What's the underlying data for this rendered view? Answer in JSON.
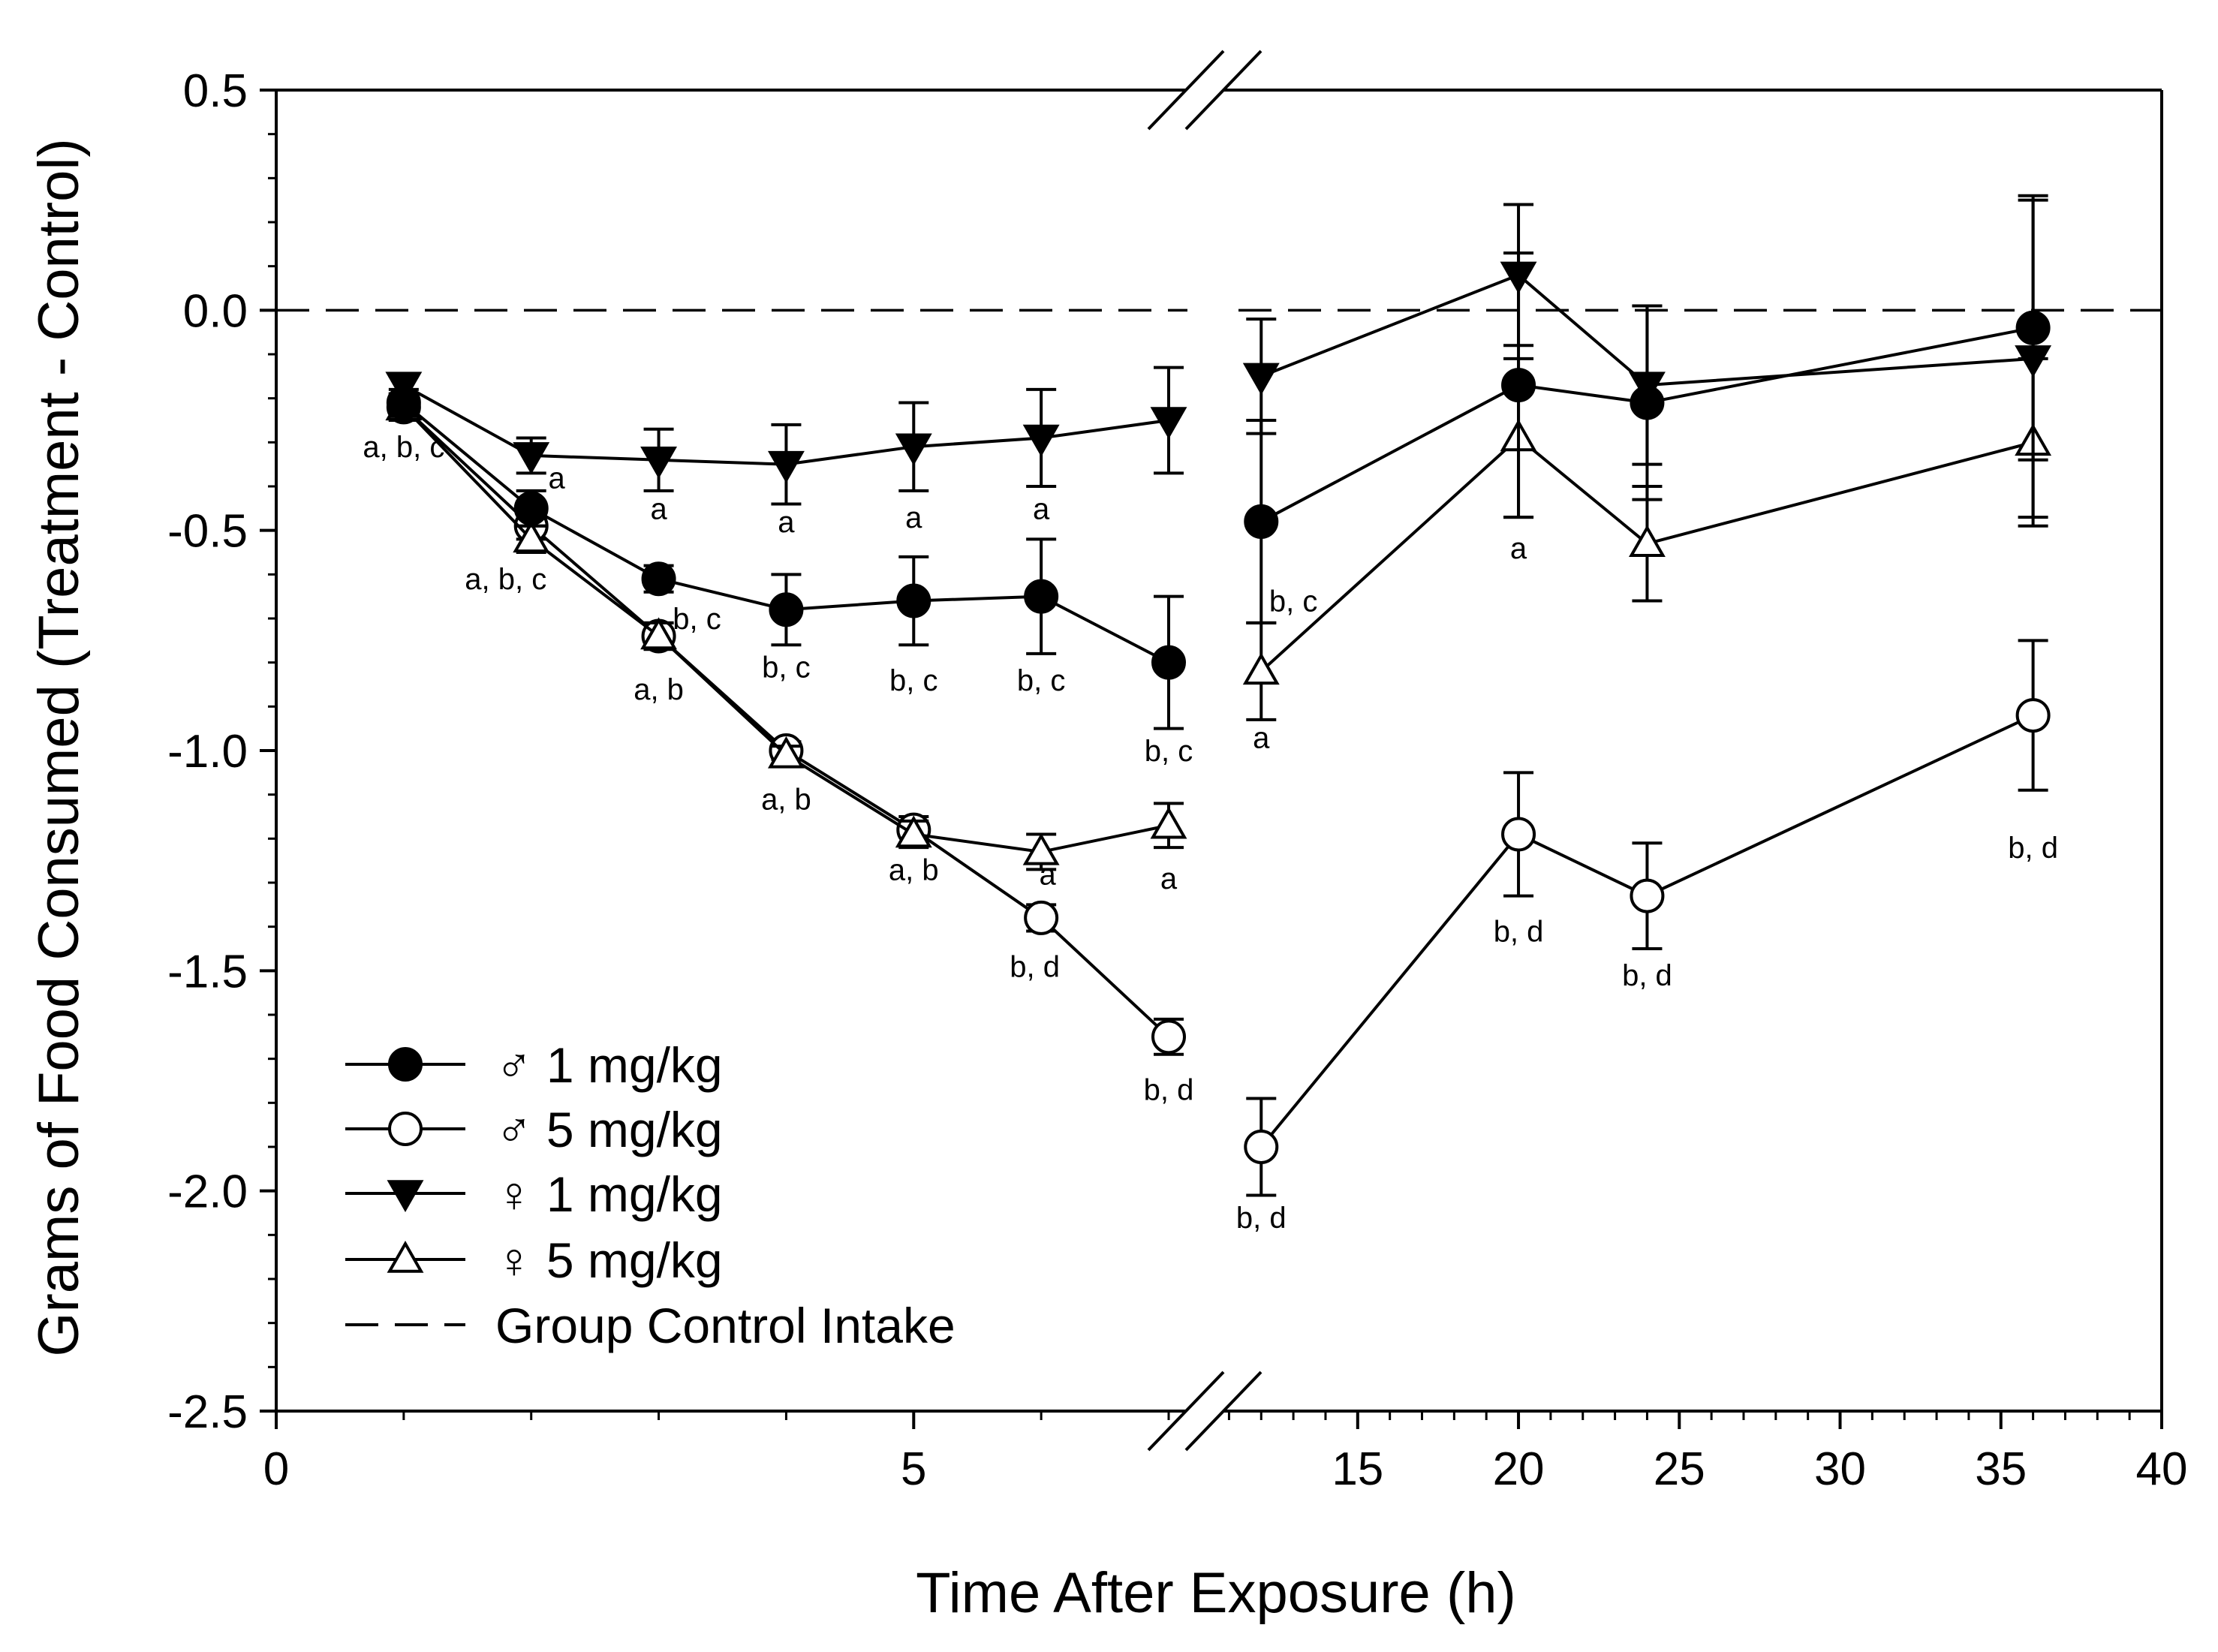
{
  "chart_data": {
    "type": "line",
    "xlabel": "Time After Exposure (h)",
    "ylabel": "Grams of Food Consumed (Treatment - Control)",
    "ylim": [
      -2.5,
      0.5
    ],
    "y_ticks": [
      "0.5",
      "0.0",
      "-0.5",
      "-1.0",
      "-1.5",
      "-2.0",
      "-2.5"
    ],
    "x_axis": {
      "broken": true,
      "segments": [
        {
          "range": [
            0,
            7
          ],
          "ticks": [
            "0",
            "5"
          ]
        },
        {
          "range": [
            10.5,
            40
          ],
          "ticks": [
            "15",
            "20",
            "25",
            "30",
            "35",
            "40"
          ]
        }
      ]
    },
    "series": [
      {
        "name": "♂ 1 mg/kg",
        "marker": "filled-circle",
        "x": [
          1,
          2,
          3,
          4,
          5,
          6,
          7,
          12,
          20,
          24,
          36
        ],
        "y": [
          -0.21,
          -0.45,
          -0.61,
          -0.68,
          -0.66,
          -0.65,
          -0.8,
          -0.48,
          -0.17,
          -0.21,
          -0.04
        ],
        "err": [
          0.03,
          0.04,
          0.03,
          0.08,
          0.1,
          0.13,
          0.15,
          0.23,
          0.3,
          0.22,
          0.3
        ]
      },
      {
        "name": "♂ 5 mg/kg",
        "marker": "open-circle",
        "x": [
          1,
          2,
          3,
          4,
          5,
          6,
          7,
          12,
          20,
          24,
          36
        ],
        "y": [
          -0.22,
          -0.49,
          -0.74,
          -1.0,
          -1.18,
          -1.38,
          -1.65,
          -1.9,
          -1.19,
          -1.33,
          -0.92
        ],
        "err": [
          0.03,
          0.03,
          0.03,
          0.02,
          0.03,
          0.03,
          0.04,
          0.11,
          0.14,
          0.12,
          0.17
        ]
      },
      {
        "name": "♀ 1 mg/kg",
        "marker": "filled-triangle-down",
        "x": [
          1,
          2,
          3,
          4,
          5,
          6,
          7,
          12,
          20,
          24,
          36
        ],
        "y": [
          -0.17,
          -0.33,
          -0.34,
          -0.35,
          -0.31,
          -0.29,
          -0.25,
          -0.15,
          0.08,
          -0.17,
          -0.11
        ],
        "err": [
          0.02,
          0.04,
          0.07,
          0.09,
          0.1,
          0.11,
          0.12,
          0.13,
          0.16,
          0.18,
          0.36
        ]
      },
      {
        "name": "♀ 5 mg/kg",
        "marker": "open-triangle-up",
        "x": [
          1,
          2,
          3,
          4,
          5,
          6,
          7,
          12,
          20,
          24,
          36
        ],
        "y": [
          -0.22,
          -0.52,
          -0.74,
          -1.01,
          -1.19,
          -1.23,
          -1.17,
          -0.82,
          -0.29,
          -0.53,
          -0.3
        ],
        "err": [
          0.03,
          0.03,
          0.03,
          0.02,
          0.03,
          0.04,
          0.05,
          0.11,
          0.18,
          0.13,
          0.19
        ]
      }
    ],
    "reference_line": {
      "name": "Group Control Intake",
      "y": 0.0,
      "style": "dashed"
    },
    "annotations": [
      {
        "text": "a, b, c",
        "x": 1,
        "y": -0.31
      },
      {
        "text": "a",
        "x": 2.2,
        "y": -0.38
      },
      {
        "text": "a, b, c",
        "x": 1.8,
        "y": -0.61
      },
      {
        "text": "a",
        "x": 3,
        "y": -0.45
      },
      {
        "text": "b, c",
        "x": 3.3,
        "y": -0.7
      },
      {
        "text": "a, b",
        "x": 3,
        "y": -0.86
      },
      {
        "text": "a",
        "x": 4,
        "y": -0.48
      },
      {
        "text": "b, c",
        "x": 4,
        "y": -0.81
      },
      {
        "text": "a, b",
        "x": 4,
        "y": -1.11
      },
      {
        "text": "a",
        "x": 5,
        "y": -0.47
      },
      {
        "text": "b, c",
        "x": 5,
        "y": -0.84
      },
      {
        "text": "a, b",
        "x": 5,
        "y": -1.27
      },
      {
        "text": "a",
        "x": 6,
        "y": -0.45
      },
      {
        "text": "b, c",
        "x": 6,
        "y": -0.84
      },
      {
        "text": "a",
        "x": 6.05,
        "y": -1.28
      },
      {
        "text": "b, d",
        "x": 5.95,
        "y": -1.49
      },
      {
        "text": "b, c",
        "x": 7,
        "y": -1.0
      },
      {
        "text": "a",
        "x": 7,
        "y": -1.29
      },
      {
        "text": "b, d",
        "x": 7,
        "y": -1.77
      },
      {
        "text": "b, c",
        "x": 13,
        "y": -0.66
      },
      {
        "text": "a",
        "x": 12,
        "y": -0.97
      },
      {
        "text": "b, d",
        "x": 12,
        "y": -2.06
      },
      {
        "text": "a",
        "x": 20,
        "y": -0.54
      },
      {
        "text": "b, d",
        "x": 20,
        "y": -1.41
      },
      {
        "text": "b, d",
        "x": 24,
        "y": -1.51
      },
      {
        "text": "b, d",
        "x": 36,
        "y": -1.22
      }
    ],
    "legend": {
      "position": "bottom-left",
      "entries": [
        "♂ 1 mg/kg",
        "♂ 5 mg/kg",
        "♀ 1 mg/kg",
        "♀ 5 mg/kg",
        "Group Control Intake"
      ]
    },
    "grid": false
  }
}
